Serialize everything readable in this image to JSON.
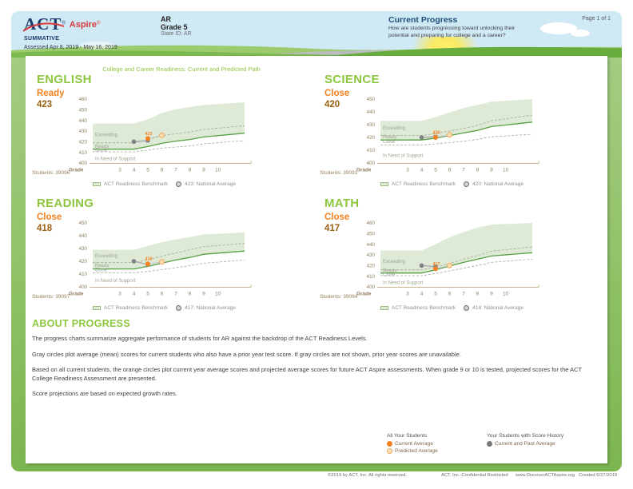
{
  "header": {
    "logo_act": "ACT",
    "logo_act_reg": "®",
    "logo_aspire": "Aspire",
    "logo_aspire_reg": "®",
    "program": "SUMMATIVE",
    "assessed": "Assessed Apr 8, 2019 - May 16, 2019",
    "state": "AR",
    "grade": "Grade 5",
    "state_id": "State ID: AR",
    "section_title": "Current Progress",
    "section_desc": "How are students progressing toward unlocking their potential and preparing for college and a career?",
    "page": "Page 1 of 1"
  },
  "report_title": "College and Career Readiness: Current and Predicted Path",
  "colors": {
    "accent_green": "#8dc63f",
    "orange": "#f58220",
    "score_brown": "#9a6012",
    "navy": "#1f4e79",
    "header_blue": "#cfe9f5",
    "band_green": "#dfead6",
    "line_green": "#56a044",
    "dash_line": "#a0ab93",
    "region_text": "#9ba590",
    "axis_text": "#8f7d60",
    "axis_line": "#b79a6d",
    "gray_point": "#808285",
    "gray_line": "#a7a9ac",
    "pred_line": "#c7c9cb",
    "predicted_fill": "#fcdcb3",
    "predicted_stroke": "#f0a85a"
  },
  "subjects": [
    {
      "name": "ENGLISH",
      "status": "Ready",
      "score": "423",
      "students_label": "Students: 39096",
      "legend_benchmark": "ACT Readiness Benchmark",
      "legend_national": "423: National Average"
    },
    {
      "name": "SCIENCE",
      "status": "Close",
      "score": "420",
      "students_label": "Students: 39091",
      "legend_benchmark": "ACT Readiness Benchmark",
      "legend_national": "420: National Average"
    },
    {
      "name": "READING",
      "status": "Close",
      "score": "418",
      "students_label": "Students: 39097",
      "legend_benchmark": "ACT Readiness Benchmark",
      "legend_national": "417: National Average"
    },
    {
      "name": "MATH",
      "status": "Close",
      "score": "417",
      "students_label": "Students: 39094",
      "legend_benchmark": "ACT Readiness Benchmark",
      "legend_national": "418: National Average"
    }
  ],
  "chart_data": [
    {
      "type": "area",
      "subject": "ENGLISH",
      "xlabel_prefix": "Grade",
      "x": [
        3,
        4,
        5,
        6,
        7,
        8,
        9,
        10
      ],
      "ylim": [
        400,
        460
      ],
      "yticks": [
        460,
        450,
        440,
        430,
        420,
        410,
        400
      ],
      "benchmark_band_low": [
        413,
        413,
        415.5,
        418.5,
        420.5,
        422,
        424.5,
        428
      ],
      "benchmark_band_high": [
        437,
        437,
        441,
        447,
        450.5,
        452.5,
        454.5,
        457
      ],
      "exceeding_boundary": [
        419,
        419,
        421.5,
        425.5,
        427.5,
        429,
        431.5,
        435
      ],
      "close_boundary": [
        410.5,
        410.5,
        412,
        414,
        415,
        416,
        418,
        421
      ],
      "region_labels": [
        {
          "label": "Exceeding",
          "value": 426.5
        },
        {
          "label": "Ready",
          "value": 415.8
        },
        {
          "label": "Close",
          "value": 412.2
        },
        {
          "label": "In Need of Support",
          "value": 404
        }
      ],
      "series": [
        {
          "name": "Current and Past Average",
          "style": "gray",
          "x": [
            4,
            5
          ],
          "values": [
            420,
            421
          ]
        },
        {
          "name": "Current Average",
          "style": "orange",
          "x": [
            5
          ],
          "values": [
            423
          ],
          "point_label": "423"
        },
        {
          "name": "Predicted Average",
          "style": "predicted",
          "x": [
            6
          ],
          "values": [
            426
          ]
        }
      ]
    },
    {
      "type": "area",
      "subject": "SCIENCE",
      "xlabel_prefix": "Grade",
      "x": [
        3,
        4,
        5,
        6,
        7,
        8,
        9,
        10
      ],
      "ylim": [
        400,
        450
      ],
      "yticks": [
        450,
        440,
        430,
        420,
        410,
        400
      ],
      "benchmark_band_low": [
        418,
        418,
        419.5,
        421.5,
        423.5,
        425.5,
        428.5,
        432
      ],
      "benchmark_band_high": [
        433,
        433,
        436,
        439.5,
        443,
        445.5,
        448,
        450
      ],
      "exceeding_boundary": [
        421.5,
        421.5,
        423,
        425,
        427,
        429.5,
        433,
        437.5
      ],
      "close_boundary": [
        414,
        414,
        415,
        416,
        417,
        418.5,
        420.5,
        422.5
      ],
      "region_labels": [
        {
          "label": "Exceeding",
          "value": 427.5
        },
        {
          "label": "Ready",
          "value": 420.6
        },
        {
          "label": "Close",
          "value": 417
        },
        {
          "label": "In Need of Support",
          "value": 406
        }
      ],
      "series": [
        {
          "name": "Current and Past Average",
          "style": "gray",
          "x": [
            4,
            5
          ],
          "values": [
            420,
            420.5
          ]
        },
        {
          "name": "Current Average",
          "style": "orange",
          "x": [
            5
          ],
          "values": [
            420
          ],
          "point_label": "420"
        },
        {
          "name": "Predicted Average",
          "style": "predicted",
          "x": [
            6
          ],
          "values": [
            422
          ]
        }
      ]
    },
    {
      "type": "area",
      "subject": "READING",
      "xlabel_prefix": "Grade",
      "x": [
        3,
        4,
        5,
        6,
        7,
        8,
        9,
        10
      ],
      "ylim": [
        400,
        450
      ],
      "yticks": [
        450,
        440,
        430,
        420,
        410,
        400
      ],
      "benchmark_band_low": [
        414,
        414,
        416,
        418.5,
        421,
        423,
        425.5,
        428
      ],
      "benchmark_band_high": [
        429,
        429,
        432,
        435,
        437,
        439,
        441,
        442.5
      ],
      "exceeding_boundary": [
        419,
        419,
        421,
        424,
        426.5,
        429,
        431.5,
        434
      ],
      "close_boundary": [
        411,
        411,
        412,
        413.5,
        415,
        416.5,
        418.5,
        421
      ],
      "region_labels": [
        {
          "label": "Exceeding",
          "value": 424.5
        },
        {
          "label": "Ready",
          "value": 417
        },
        {
          "label": "Close",
          "value": 413.5
        },
        {
          "label": "In Need of Support",
          "value": 405
        }
      ],
      "series": [
        {
          "name": "Current and Past Average",
          "style": "gray",
          "x": [
            4,
            5
          ],
          "values": [
            420,
            417.5
          ]
        },
        {
          "name": "Current Average",
          "style": "orange",
          "x": [
            5
          ],
          "values": [
            418
          ],
          "point_label": "418"
        },
        {
          "name": "Predicted Average",
          "style": "predicted",
          "x": [
            6
          ],
          "values": [
            419.5
          ]
        }
      ]
    },
    {
      "type": "area",
      "subject": "MATH",
      "xlabel_prefix": "Grade",
      "x": [
        3,
        4,
        5,
        6,
        7,
        8,
        9,
        10
      ],
      "ylim": [
        400,
        460
      ],
      "yticks": [
        460,
        450,
        440,
        430,
        420,
        410,
        400
      ],
      "benchmark_band_low": [
        413,
        413,
        416,
        419.5,
        423,
        426,
        429,
        432
      ],
      "benchmark_band_high": [
        434,
        434,
        440,
        446.5,
        451.5,
        455.5,
        458.5,
        460
      ],
      "exceeding_boundary": [
        416,
        416,
        418.5,
        422,
        426,
        429.5,
        433.5,
        437.5
      ],
      "close_boundary": [
        410.5,
        410.5,
        412.5,
        415,
        417.5,
        420,
        423,
        426
      ],
      "region_labels": [
        {
          "label": "Exceeding",
          "value": 424
        },
        {
          "label": "Ready",
          "value": 415.5
        },
        {
          "label": "Close",
          "value": 411.5
        },
        {
          "label": "In Need of Support",
          "value": 404
        }
      ],
      "series": [
        {
          "name": "Current and Past Average",
          "style": "gray",
          "x": [
            4,
            5
          ],
          "values": [
            420,
            419
          ]
        },
        {
          "name": "Current Average",
          "style": "orange",
          "x": [
            5
          ],
          "values": [
            417
          ],
          "point_label": "417"
        },
        {
          "name": "Predicted Average",
          "style": "predicted",
          "x": [
            6
          ],
          "values": [
            420
          ]
        }
      ]
    }
  ],
  "about": {
    "title": "ABOUT PROGRESS",
    "paragraphs": [
      "The progress charts summarize aggregate performance of students for AR against the backdrop of the ACT Readiness Levels.",
      "Gray circles plot average (mean) scores for current students who also have a prior year test score. If gray circles are not shown, prior year scores are unavailable.",
      "Based on all current students, the orange circles plot current year average scores and projected average scores for future ACT Aspire assessments. When grade 9 or 10 is tested, projected scores for the ACT College Readiness Assessment are presented.",
      "Score projections are based on expected growth rates."
    ]
  },
  "score_legend": {
    "col1_title": "All Your Students",
    "col1_items": [
      {
        "icon": "filled-orange-circle",
        "label": "Current Average"
      },
      {
        "icon": "open-orange-circle",
        "label": "Predicted Average"
      }
    ],
    "col2_title": "Your Students with Score History",
    "col2_items": [
      {
        "icon": "filled-gray-circle",
        "label": "Current and Past Average"
      }
    ]
  },
  "footer": {
    "copyright": "©2019 by ACT, Inc. All rights reserved.",
    "confidential": "ACT, Inc.-Confidential Restricted",
    "url": "www.DiscoverACTAspire.org",
    "created": "Created 6/27/2019"
  }
}
